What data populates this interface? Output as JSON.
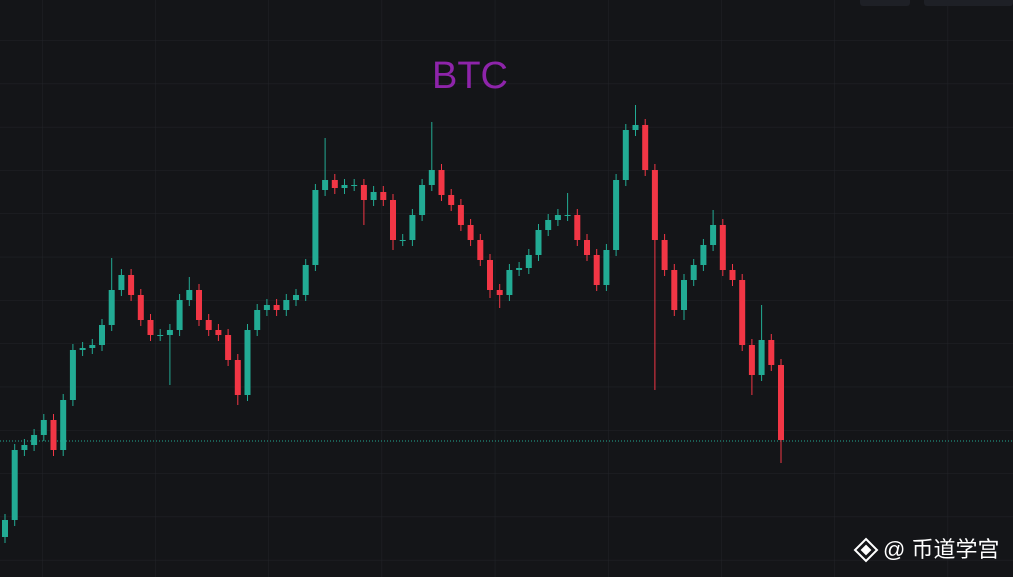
{
  "chart_data": {
    "type": "candlestick",
    "title": "BTC",
    "ylim": [
      0,
      577
    ],
    "grid": true,
    "up_color": "#22ab94",
    "down_color": "#f23645",
    "price_line": 136,
    "series": {
      "open": [
        40,
        57,
        127,
        132,
        142,
        157,
        127,
        177,
        227,
        229,
        232,
        252,
        287,
        302,
        282,
        257,
        242,
        242,
        247,
        277,
        287,
        257,
        247,
        242,
        217,
        182,
        247,
        267,
        272,
        267,
        277,
        282,
        312,
        387,
        397,
        389,
        392,
        392,
        377,
        385,
        377,
        337,
        337,
        362,
        392,
        407,
        382,
        372,
        352,
        337,
        317,
        287,
        282,
        307,
        309,
        322,
        347,
        357,
        362,
        362,
        337,
        322,
        292,
        327,
        397,
        447,
        452,
        407,
        337,
        307,
        267,
        297,
        312,
        332,
        352,
        307,
        297,
        232,
        202,
        237,
        212
      ],
      "high": [
        63,
        133,
        138,
        148,
        163,
        163,
        183,
        233,
        235,
        238,
        258,
        319,
        308,
        308,
        288,
        263,
        248,
        253,
        283,
        300,
        293,
        263,
        253,
        248,
        223,
        253,
        273,
        278,
        278,
        283,
        288,
        318,
        393,
        439,
        403,
        398,
        398,
        398,
        391,
        391,
        383,
        343,
        368,
        398,
        455,
        413,
        388,
        378,
        358,
        343,
        323,
        293,
        313,
        315,
        328,
        353,
        363,
        368,
        384,
        368,
        343,
        328,
        333,
        403,
        453,
        472,
        458,
        413,
        343,
        313,
        303,
        318,
        338,
        367,
        358,
        313,
        303,
        238,
        272,
        243,
        218
      ],
      "low": [
        34,
        51,
        121,
        126,
        136,
        121,
        121,
        171,
        221,
        223,
        226,
        246,
        281,
        276,
        251,
        236,
        236,
        192,
        241,
        271,
        251,
        241,
        236,
        211,
        172,
        176,
        241,
        261,
        261,
        261,
        271,
        276,
        306,
        381,
        383,
        383,
        386,
        352,
        371,
        371,
        327,
        331,
        331,
        356,
        386,
        376,
        366,
        346,
        331,
        311,
        279,
        269,
        276,
        301,
        303,
        316,
        341,
        351,
        356,
        331,
        316,
        286,
        286,
        321,
        391,
        441,
        401,
        187,
        301,
        261,
        257,
        291,
        306,
        326,
        301,
        291,
        226,
        182,
        196,
        206,
        114
      ],
      "close": [
        57,
        127,
        132,
        142,
        157,
        127,
        177,
        227,
        229,
        232,
        252,
        287,
        302,
        282,
        257,
        242,
        242,
        247,
        277,
        287,
        257,
        247,
        242,
        217,
        182,
        247,
        267,
        272,
        267,
        277,
        282,
        312,
        387,
        397,
        389,
        392,
        392,
        377,
        385,
        377,
        337,
        337,
        362,
        392,
        407,
        382,
        372,
        352,
        337,
        317,
        287,
        282,
        307,
        309,
        322,
        347,
        357,
        362,
        362,
        337,
        322,
        292,
        327,
        397,
        447,
        452,
        407,
        337,
        307,
        267,
        297,
        312,
        332,
        352,
        307,
        297,
        232,
        202,
        237,
        212,
        137
      ]
    }
  },
  "watermark": "@ 币道学宫"
}
